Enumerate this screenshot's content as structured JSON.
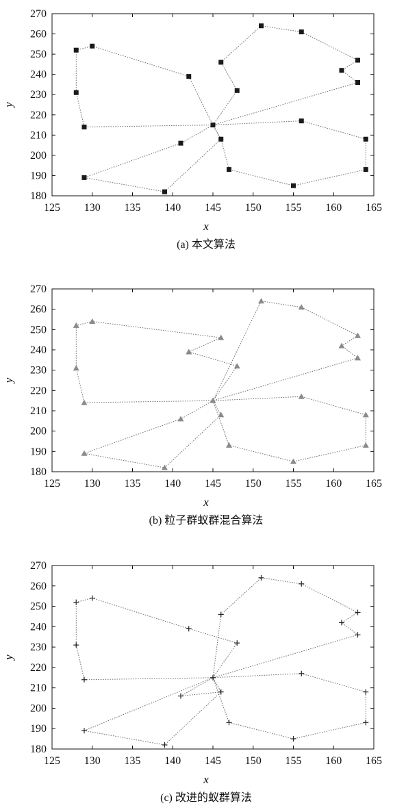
{
  "chart_data": [
    {
      "type": "line",
      "caption": "(a) 本文算法",
      "xlabel": "x",
      "ylabel": "y",
      "xlim": [
        125,
        165
      ],
      "ylim": [
        180,
        270
      ],
      "xticks": [
        125,
        130,
        135,
        140,
        145,
        150,
        155,
        160,
        165
      ],
      "yticks": [
        180,
        190,
        200,
        210,
        220,
        230,
        240,
        250,
        260,
        270
      ],
      "marker": "square",
      "line_style": "dotted",
      "x": [
        145,
        148,
        146,
        151,
        156,
        163,
        161,
        163,
        145,
        156,
        164,
        164,
        155,
        147,
        146,
        145,
        142,
        130,
        128,
        128,
        129,
        145,
        141,
        129,
        139,
        146,
        145
      ],
      "y": [
        215,
        232,
        246,
        264,
        261,
        247,
        242,
        236,
        215,
        217,
        208,
        193,
        185,
        193,
        208,
        215,
        239,
        254,
        252,
        231,
        214,
        215,
        206,
        189,
        182,
        208,
        215
      ]
    },
    {
      "type": "line",
      "caption": "(b) 粒子群蚁群混合算法",
      "xlabel": "x",
      "ylabel": "y",
      "xlim": [
        125,
        165
      ],
      "ylim": [
        180,
        270
      ],
      "xticks": [
        125,
        130,
        135,
        140,
        145,
        150,
        155,
        160,
        165
      ],
      "yticks": [
        180,
        190,
        200,
        210,
        220,
        230,
        240,
        250,
        260,
        270
      ],
      "marker": "triangle",
      "line_style": "dotted",
      "x": [
        145,
        151,
        156,
        163,
        161,
        163,
        145,
        156,
        164,
        164,
        155,
        147,
        145,
        148,
        142,
        146,
        130,
        128,
        128,
        129,
        145,
        141,
        129,
        139,
        146,
        145
      ],
      "y": [
        215,
        264,
        261,
        247,
        242,
        236,
        215,
        217,
        208,
        193,
        185,
        193,
        215,
        232,
        239,
        246,
        254,
        252,
        231,
        214,
        215,
        206,
        189,
        182,
        208,
        215
      ]
    },
    {
      "type": "line",
      "caption": "(c) 改进的蚁群算法",
      "xlabel": "x",
      "ylabel": "y",
      "xlim": [
        125,
        165
      ],
      "ylim": [
        180,
        270
      ],
      "xticks": [
        125,
        130,
        135,
        140,
        145,
        150,
        155,
        160,
        165
      ],
      "yticks": [
        180,
        190,
        200,
        210,
        220,
        230,
        240,
        250,
        260,
        270
      ],
      "marker": "plus",
      "line_style": "dotted",
      "x": [
        145,
        146,
        151,
        156,
        163,
        161,
        163,
        145,
        156,
        164,
        164,
        155,
        147,
        145,
        148,
        142,
        130,
        128,
        128,
        129,
        145,
        141,
        146,
        145,
        129,
        139,
        146,
        145
      ],
      "y": [
        215,
        246,
        264,
        261,
        247,
        242,
        236,
        215,
        217,
        208,
        193,
        185,
        193,
        215,
        232,
        239,
        254,
        252,
        231,
        214,
        215,
        206,
        208,
        215,
        189,
        182,
        208,
        215
      ]
    }
  ]
}
